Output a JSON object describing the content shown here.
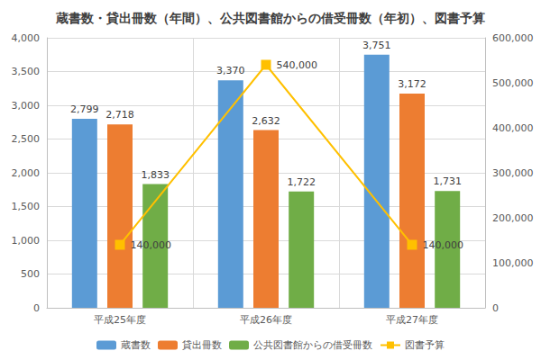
{
  "chart_data": {
    "type": "bar",
    "title": "蔵書数・貸出冊数（年間）、公共図書館からの借受冊数（年初）、図書予算",
    "categories": [
      "平成25年度",
      "平成26年度",
      "平成27年度"
    ],
    "series": [
      {
        "name": "蔵書数",
        "type": "bar",
        "color": "#5b9bd5",
        "values": [
          2799,
          3370,
          3751
        ],
        "value_labels": [
          "2,799",
          "3,370",
          "3,751"
        ]
      },
      {
        "name": "貸出冊数",
        "type": "bar",
        "color": "#ed7d31",
        "values": [
          2718,
          2632,
          3172
        ],
        "value_labels": [
          "2,718",
          "2,632",
          "3,172"
        ]
      },
      {
        "name": "公共図書館からの借受冊数",
        "type": "bar",
        "color": "#70ad47",
        "values": [
          1833,
          1722,
          1731
        ],
        "value_labels": [
          "1,833",
          "1,722",
          "1,731"
        ]
      },
      {
        "name": "図書予算",
        "type": "line",
        "axis": "y2",
        "color": "#ffc000",
        "marker": "square",
        "values": [
          140000,
          540000,
          140000
        ],
        "value_labels": [
          "140,000",
          "540,000",
          "140,000"
        ]
      }
    ],
    "ylim": [
      0,
      4000
    ],
    "yticks": [
      0,
      500,
      {
        "value": 1000,
        "label": "1,000"
      },
      {
        "value": 1500,
        "label": "1,500"
      },
      {
        "value": 2000,
        "label": "2,000"
      },
      {
        "value": 2500,
        "label": "2,500"
      },
      {
        "value": 3000,
        "label": "3,000"
      },
      {
        "value": 3500,
        "label": "3,500"
      },
      {
        "value": 4000,
        "label": "4,000"
      }
    ],
    "y2lim": [
      0,
      600000
    ],
    "y2ticks": [
      0,
      {
        "value": 100000,
        "label": "100,000"
      },
      {
        "value": 200000,
        "label": "200,000"
      },
      {
        "value": 300000,
        "label": "300,000"
      },
      {
        "value": 400000,
        "label": "400,000"
      },
      {
        "value": 500000,
        "label": "500,000"
      },
      {
        "value": 600000,
        "label": "600,000"
      }
    ],
    "grid": true,
    "legend": "bottom",
    "data_labels": true
  }
}
